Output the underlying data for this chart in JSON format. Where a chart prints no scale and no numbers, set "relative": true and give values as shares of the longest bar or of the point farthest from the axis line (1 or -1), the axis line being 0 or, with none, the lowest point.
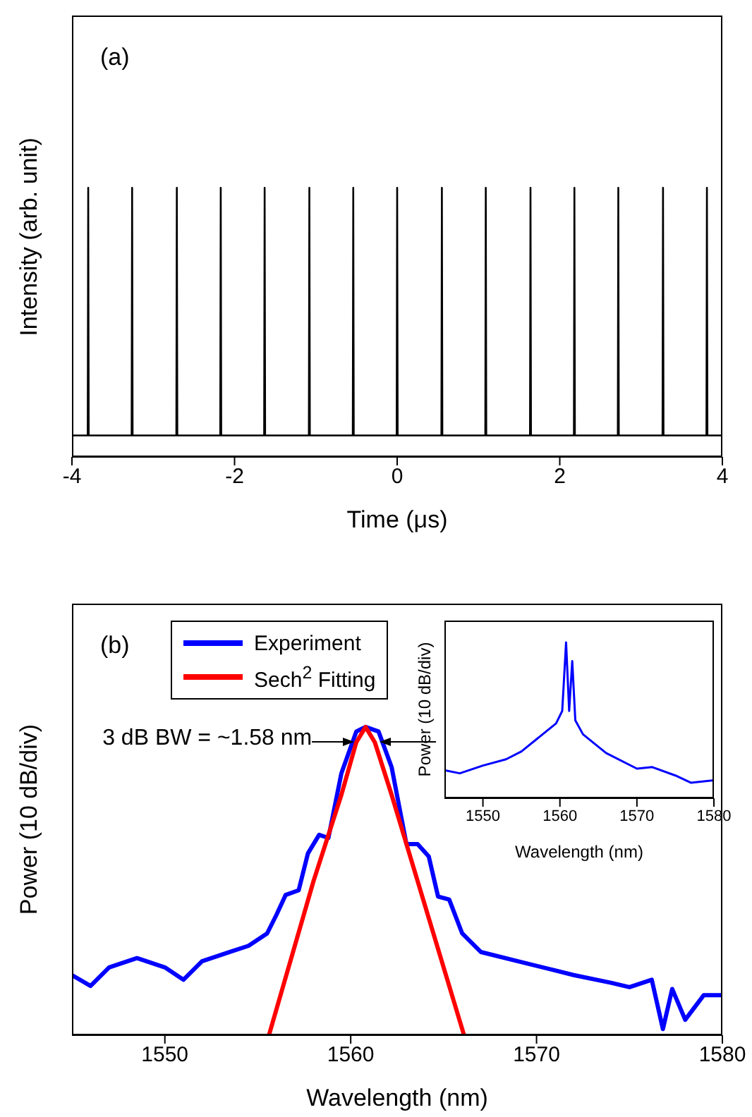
{
  "chart_data": [
    {
      "type": "line",
      "xlabel": "Time (μs)",
      "ylabel": "Intensity (arb. unit)",
      "annotations": [
        "(a)"
      ],
      "relative": true,
      "xlim": [
        -4,
        4
      ],
      "xticks": [
        -4,
        -2,
        0,
        2,
        4
      ],
      "x": [
        -4,
        -3.806,
        -3.8,
        -3.794,
        -3.266,
        -3.26,
        -3.254,
        -2.716,
        -2.71,
        -2.704,
        -2.176,
        -2.17,
        -2.164,
        -1.636,
        -1.63,
        -1.624,
        -1.086,
        -1.08,
        -1.074,
        -0.546,
        -0.54,
        -0.534,
        -0.006,
        0,
        0.006,
        0.544,
        0.55,
        0.556,
        1.084,
        1.09,
        1.096,
        1.634,
        1.64,
        1.646,
        2.174,
        2.18,
        2.186,
        2.714,
        2.72,
        2.726,
        3.264,
        3.27,
        3.276,
        3.804,
        3.81,
        3.816,
        4
      ],
      "series": [
        {
          "color": "#000000",
          "values": [
            0.08,
            0.08,
            1,
            0.08,
            0.08,
            1,
            0.08,
            0.08,
            1,
            0.08,
            0.08,
            1,
            0.08,
            0.08,
            1,
            0.08,
            0.08,
            1,
            0.08,
            0.08,
            1,
            0.08,
            0.08,
            1,
            0.08,
            0.08,
            1,
            0.08,
            0.08,
            1,
            0.08,
            0.08,
            1,
            0.08,
            0.08,
            1,
            0.08,
            0.08,
            1,
            0.08,
            0.08,
            1,
            0.08,
            0.08,
            1,
            0.08,
            0.08
          ]
        }
      ]
    },
    {
      "type": "line",
      "xlabel": "Wavelength (nm)",
      "ylabel": "Power (10 dB/div)",
      "annotations": [
        "(b)",
        {
          "text": "3 dB BW = ~1.58 nm",
          "x": 1560.8,
          "y": 0.95
        }
      ],
      "relative": true,
      "xlim": [
        1545,
        1580
      ],
      "xticks": [
        1550,
        1560,
        1570,
        1580
      ],
      "legend": "top left",
      "series": [
        {
          "name": "Experiment",
          "color": "#0000ff",
          "x": [
            1545,
            1546,
            1547,
            1548.5,
            1550,
            1551,
            1552,
            1553.5,
            1554.5,
            1555.5,
            1556,
            1556.5,
            1557.2,
            1557.7,
            1558.3,
            1558.8,
            1559.5,
            1560.3,
            1560.8,
            1561.5,
            1562.2,
            1563,
            1563.6,
            1564.2,
            1564.7,
            1565.3,
            1566,
            1567,
            1569,
            1571,
            1572,
            1574,
            1575,
            1576.2,
            1576.8,
            1577.3,
            1578,
            1579,
            1580
          ],
          "values": [
            0.195,
            0.16,
            0.22,
            0.25,
            0.22,
            0.18,
            0.24,
            0.27,
            0.29,
            0.33,
            0.39,
            0.455,
            0.47,
            0.59,
            0.65,
            0.64,
            0.85,
            0.985,
            1,
            0.985,
            0.87,
            0.62,
            0.62,
            0.58,
            0.45,
            0.44,
            0.33,
            0.27,
            0.24,
            0.21,
            0.195,
            0.17,
            0.156,
            0.18,
            0.02,
            0.15,
            0.05,
            0.13,
            0.13
          ]
        },
        {
          "name": "Sech$^{2}$ Fitting",
          "color": "#ff0000",
          "x": [
            1555.6,
            1558,
            1559.5,
            1560.3,
            1560.8,
            1561.3,
            1562.2,
            1563.6,
            1566.1
          ],
          "values": [
            0,
            0.5,
            0.78,
            0.95,
            1,
            0.95,
            0.78,
            0.5,
            0
          ]
        }
      ]
    },
    {
      "type": "line",
      "xlabel": "Wavelength (nm)",
      "ylabel": "Power (10 dB/div)",
      "relative": true,
      "xlim": [
        1545,
        1580
      ],
      "xticks": [
        1550,
        1560,
        1570,
        1580
      ],
      "series": [
        {
          "color": "#0000ff",
          "x": [
            1545,
            1547,
            1550,
            1553,
            1555,
            1558,
            1559.5,
            1560.3,
            1560.8,
            1561.2,
            1561.6,
            1562,
            1563,
            1566,
            1570,
            1572,
            1575,
            1577,
            1580
          ],
          "values": [
            0.18,
            0.16,
            0.21,
            0.25,
            0.3,
            0.42,
            0.48,
            0.56,
            1,
            0.56,
            0.88,
            0.5,
            0.41,
            0.29,
            0.19,
            0.2,
            0.146,
            0.1,
            0.115
          ]
        }
      ]
    }
  ]
}
